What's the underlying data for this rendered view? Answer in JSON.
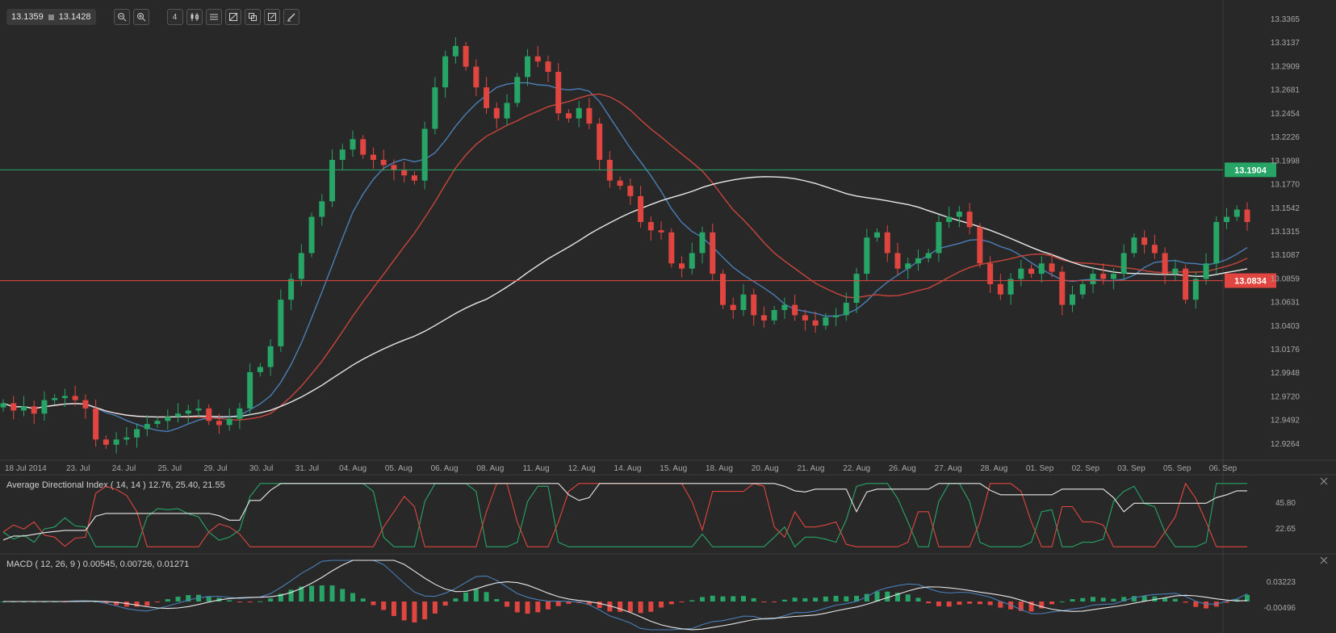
{
  "toolbar": {
    "bid": "13.1359",
    "ask": "13.1428",
    "period_label": "4",
    "buttons": [
      "zoom-out-icon",
      "zoom-in-icon",
      "period-icon",
      "candles-icon",
      "indicators-icon",
      "draw-icon",
      "objects-icon",
      "templates-icon",
      "pencil-icon"
    ]
  },
  "colors": {
    "background": "#282828",
    "up": "#27a567",
    "down": "#e0463f",
    "ma_blue": "#4a7fb7",
    "ma_red": "#c8453b",
    "ma_white": "#e8e8e8",
    "support": "#e0463f",
    "resistance": "#27a567"
  },
  "price_axis": [
    "13.3365",
    "13.3137",
    "13.2909",
    "13.2681",
    "13.2454",
    "13.2226",
    "13.1998",
    "13.1770",
    "13.1542",
    "13.1315",
    "13.1087",
    "13.0859",
    "13.0631",
    "13.0403",
    "13.0176",
    "12.9948",
    "12.9720",
    "12.9492",
    "12.9264"
  ],
  "date_axis": [
    "18 Jul 2014",
    "23. Jul",
    "24. Jul",
    "25. Jul",
    "29. Jul",
    "30. Jul",
    "31. Jul",
    "04. Aug",
    "05. Aug",
    "06. Aug",
    "08. Aug",
    "11. Aug",
    "12. Aug",
    "14. Aug",
    "15. Aug",
    "18. Aug",
    "20. Aug",
    "21. Aug",
    "22. Aug",
    "26. Aug",
    "27. Aug",
    "28. Aug",
    "01. Sep",
    "02. Sep",
    "03. Sep",
    "05. Sep",
    "06. Sep"
  ],
  "levels": {
    "resistance": "13.1904",
    "support": "13.0834"
  },
  "adx": {
    "label": "Average Directional Index ( 14, 14 ) 12.76, 25.40, 21.55",
    "axis": [
      "45.80",
      "22.65"
    ]
  },
  "macd": {
    "label": "MACD ( 12, 26, 9 ) 0.00545, 0.00726, 0.01271",
    "axis": [
      "0.03223",
      "-0.00496"
    ]
  },
  "chart_data": {
    "type": "candlestick",
    "symbol_price_range": [
      12.91,
      13.345
    ],
    "close_series": [
      12.965,
      12.958,
      12.962,
      12.955,
      12.968,
      12.97,
      12.972,
      12.968,
      12.96,
      12.93,
      12.925,
      12.93,
      12.932,
      12.94,
      12.945,
      12.948,
      12.952,
      12.955,
      12.958,
      12.96,
      12.948,
      12.944,
      12.95,
      12.96,
      12.995,
      13.0,
      13.02,
      13.065,
      13.085,
      13.11,
      13.145,
      13.16,
      13.2,
      13.21,
      13.22,
      13.205,
      13.2,
      13.195,
      13.19,
      13.185,
      13.18,
      13.23,
      13.27,
      13.3,
      13.31,
      13.29,
      13.27,
      13.25,
      13.24,
      13.255,
      13.28,
      13.3,
      13.295,
      13.285,
      13.245,
      13.24,
      13.25,
      13.235,
      13.2,
      13.18,
      13.175,
      13.165,
      13.14,
      13.132,
      13.13,
      13.1,
      13.095,
      13.11,
      13.13,
      13.09,
      13.06,
      13.055,
      13.07,
      13.05,
      13.045,
      13.055,
      13.06,
      13.05,
      13.045,
      13.04,
      13.048,
      13.05,
      13.062,
      13.09,
      13.125,
      13.13,
      13.11,
      13.095,
      13.1,
      13.105,
      13.11,
      13.14,
      13.145,
      13.15,
      13.135,
      13.1,
      13.08,
      13.07,
      13.085,
      13.095,
      13.09,
      13.1,
      13.092,
      13.06,
      13.07,
      13.08,
      13.09,
      13.085,
      13.09,
      13.11,
      13.125,
      13.118,
      13.11,
      13.09,
      13.095,
      13.065,
      13.085,
      13.1,
      13.14,
      13.145,
      13.152,
      13.14
    ],
    "moving_averages": [
      "blue",
      "red",
      "white"
    ],
    "horizontal_lines": [
      {
        "value": 13.1904,
        "color": "green"
      },
      {
        "value": 13.0834,
        "color": "red"
      }
    ]
  }
}
